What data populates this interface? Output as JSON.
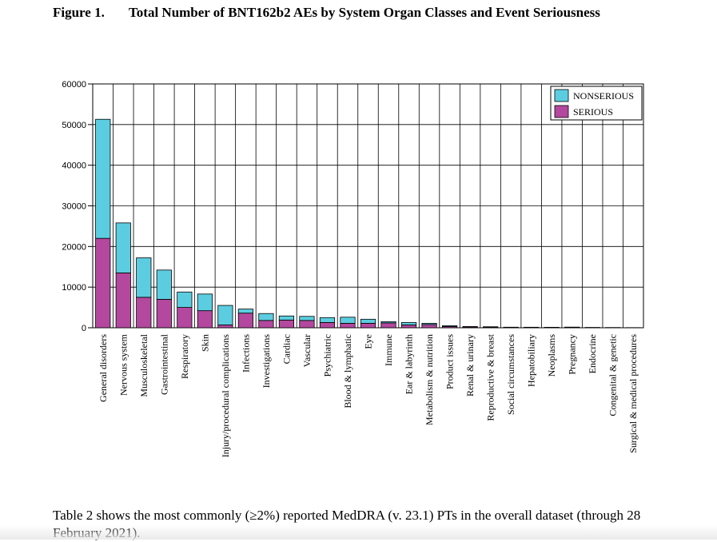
{
  "figure": {
    "number": "Figure 1.",
    "title": "Total Number of BNT162b2 AEs by System Organ Classes and Event Seriousness"
  },
  "body_text": "Table 2 shows the most commonly (≥2%) reported MedDRA (v. 23.1) PTs in the overall dataset (through 28 February 2021).",
  "colors": {
    "nonserious": "#5ccde0",
    "serious": "#b3489e",
    "axis": "#000000"
  },
  "chart_data": {
    "type": "bar",
    "stacked": true,
    "title": "",
    "xlabel": "",
    "ylabel": "",
    "ylim": [
      0,
      60000
    ],
    "yticks": [
      0,
      10000,
      20000,
      30000,
      40000,
      50000,
      60000
    ],
    "grid": true,
    "legend_position": "top-right",
    "legend_order": [
      "NONSERIOUS",
      "SERIOUS"
    ],
    "categories": [
      "General disorders",
      "Nervous system",
      "Musculoskeletal",
      "Gastrointestinal",
      "Respiratory",
      "Skin",
      "Injury/procedural complications",
      "Infections",
      "Investigations",
      "Cardiac",
      "Vascular",
      "Psychiatric",
      "Blood & lymphatic",
      "Eye",
      "Immune",
      "Ear & labyrinth",
      "Metabolism & nutrition",
      "Product issues",
      "Renal & urinary",
      "Reproductive & breast",
      "Social circumstances",
      "Hepatobiliary",
      "Neoplasms",
      "Pregnancy",
      "Endocrine",
      "Congenital & genetic",
      "Surgical & medical procedures"
    ],
    "series": [
      {
        "name": "SERIOUS",
        "values": [
          22000,
          13500,
          7500,
          7000,
          5000,
          4200,
          700,
          3600,
          1800,
          1900,
          1800,
          1300,
          1100,
          1100,
          1200,
          700,
          800,
          300,
          200,
          150,
          80,
          100,
          80,
          100,
          40,
          30,
          20
        ]
      },
      {
        "name": "NONSERIOUS",
        "values": [
          29300,
          12300,
          9700,
          7200,
          3800,
          4100,
          4800,
          1000,
          1700,
          1000,
          1000,
          1200,
          1500,
          1000,
          300,
          600,
          300,
          200,
          100,
          100,
          60,
          30,
          40,
          60,
          40,
          30,
          20
        ]
      }
    ]
  }
}
